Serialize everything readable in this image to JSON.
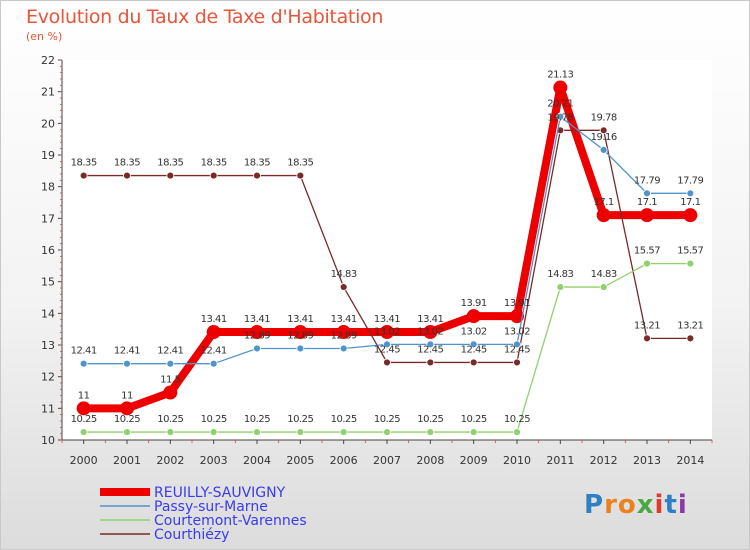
{
  "chart_data": {
    "type": "line",
    "title": "Evolution du Taux de Taxe d'Habitation",
    "subtitle": "(en %)",
    "x": [
      "2000",
      "2001",
      "2002",
      "2003",
      "2004",
      "2005",
      "2006",
      "2007",
      "2008",
      "2009",
      "2010",
      "2011",
      "2012",
      "2013",
      "2014"
    ],
    "ylim": [
      10,
      22
    ],
    "yticks": [
      10,
      11,
      12,
      13,
      14,
      15,
      16,
      17,
      18,
      19,
      20,
      21,
      22
    ],
    "grid": false,
    "legend_position": "bottom-left",
    "series": [
      {
        "name": "REUILLY-SAUVIGNY",
        "color": "#ee0000",
        "values": [
          11,
          11,
          11.5,
          13.41,
          13.41,
          13.41,
          13.41,
          13.41,
          13.41,
          13.91,
          13.91,
          21.13,
          17.1,
          17.1,
          17.1
        ],
        "labels": [
          "11",
          "11",
          "11.5",
          "13.41",
          "13.41",
          "13.41",
          "13.41",
          "13.41",
          "13.41",
          "13.91",
          "13.91",
          "21.13",
          "17.1",
          "17.1",
          "17.1"
        ]
      },
      {
        "name": "Passy-sur-Marne",
        "color": "#4f94cd",
        "values": [
          12.41,
          12.41,
          12.41,
          12.41,
          12.89,
          12.89,
          12.89,
          13.02,
          13.02,
          13.02,
          13.02,
          20.21,
          19.16,
          17.79,
          17.79
        ],
        "labels": [
          "12.41",
          "12.41",
          "12.41",
          "12.41",
          "12.89",
          "12.89",
          "12.89",
          "13.02",
          "13.02",
          "13.02",
          "13.02",
          "20.21",
          "19.16",
          "17.79",
          "17.79"
        ]
      },
      {
        "name": "Courtemont-Varennes",
        "color": "#8fd16b",
        "values": [
          10.25,
          10.25,
          10.25,
          10.25,
          10.25,
          10.25,
          10.25,
          10.25,
          10.25,
          10.25,
          10.25,
          14.83,
          14.83,
          15.57,
          15.57
        ],
        "labels": [
          "10.25",
          "10.25",
          "10.25",
          "10.25",
          "10.25",
          "10.25",
          "10.25",
          "10.25",
          "10.25",
          "10.25",
          "10.25",
          "14.83",
          "14.83",
          "15.57",
          "15.57"
        ]
      },
      {
        "name": "Courthiézy",
        "color": "#7b2a2a",
        "values": [
          18.35,
          18.35,
          18.35,
          18.35,
          18.35,
          18.35,
          14.83,
          12.45,
          12.45,
          12.45,
          12.45,
          19.78,
          19.78,
          13.21,
          13.21
        ],
        "labels": [
          "18.35",
          "18.35",
          "18.35",
          "18.35",
          "18.35",
          "18.35",
          "14.83",
          "12.45",
          "12.45",
          "12.45",
          "12.45",
          "19.78",
          "19.78",
          "13.21",
          "13.21"
        ]
      }
    ]
  },
  "logo": {
    "letters": [
      "P",
      "r",
      "o",
      "x",
      "i",
      "t",
      "i"
    ],
    "colors": [
      "#2e7fc4",
      "#e8821e",
      "#e8821e",
      "#4aa842",
      "#e23a2a",
      "#2e7fc4",
      "#8a3aa8"
    ]
  }
}
